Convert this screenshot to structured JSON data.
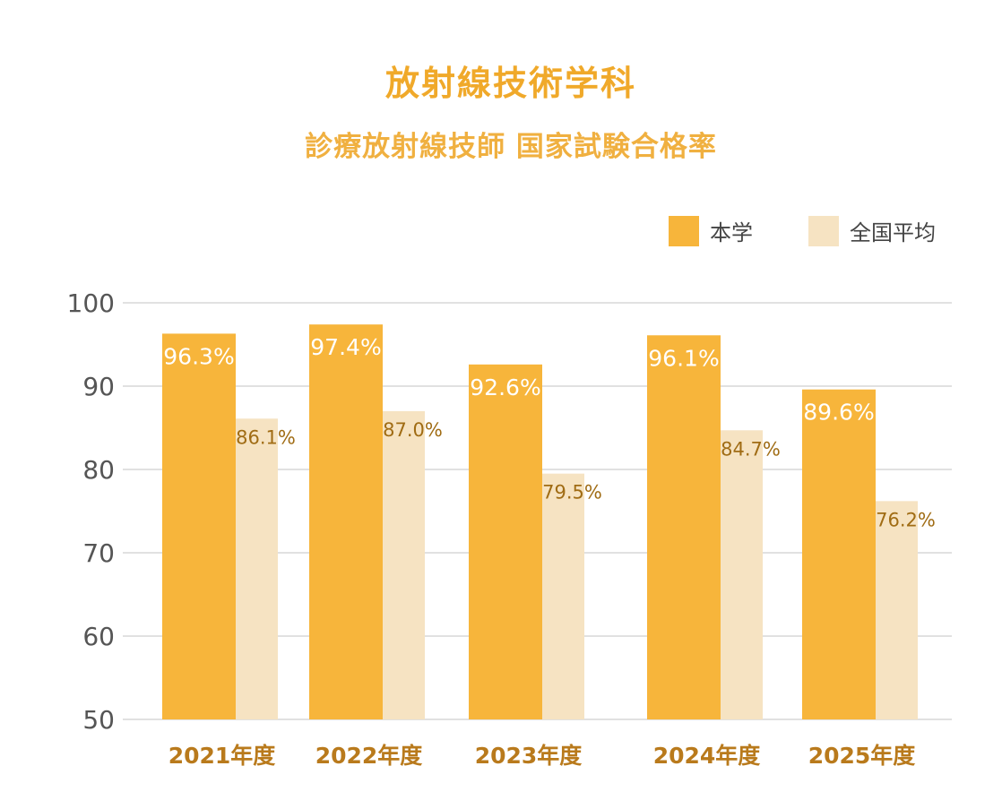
{
  "title": "放射線技術学科",
  "subtitle": "診療放射線技師 国家試験合格率",
  "chart_data": {
    "type": "bar",
    "categories": [
      "2021年度",
      "2022年度",
      "2023年度",
      "2024年度",
      "2025年度"
    ],
    "series": [
      {
        "name": "本学",
        "color": "#f7b53b",
        "values": [
          96.3,
          97.4,
          92.6,
          96.1,
          89.6
        ],
        "labels": [
          "96.3%",
          "97.4%",
          "92.6%",
          "96.1%",
          "89.6%"
        ]
      },
      {
        "name": "全国平均",
        "color": "#f6e3c2",
        "values": [
          86.1,
          87.0,
          79.5,
          84.7,
          76.2
        ],
        "labels": [
          "86.1%",
          "87.0%",
          "79.5%",
          "84.7%",
          "76.2%"
        ]
      }
    ],
    "ylim": [
      50,
      100
    ],
    "yticks": [
      "50",
      "60",
      "70",
      "80",
      "90",
      "100"
    ],
    "grid": true,
    "legend": "top-right"
  }
}
